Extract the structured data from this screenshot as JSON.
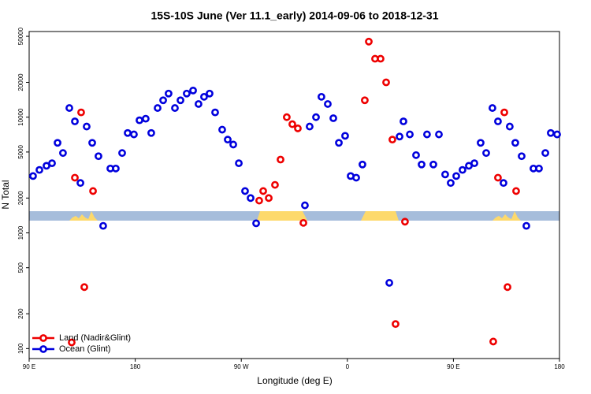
{
  "chart_data": {
    "type": "scatter",
    "title": "15S-10S June (Ver 11.1_early)   2014-09-06 to 2018-12-31",
    "x_label": "Longitude (deg E)",
    "y_label": "N Total",
    "xlim": [
      90,
      540
    ],
    "xticks": [
      {
        "value": 90,
        "label": "90 E"
      },
      180,
      {
        "value": 270,
        "label": "90 W"
      },
      {
        "value": 360,
        "label": "0"
      },
      {
        "value": 450,
        "label": "90 E"
      },
      {
        "value": 540,
        "label": "180"
      }
    ],
    "ylim": [
      82,
      55000
    ],
    "log_y": true,
    "yticks": [
      100,
      200,
      500,
      1000,
      2000,
      5000,
      10000,
      20000,
      50000
    ],
    "legend": "bottom-left",
    "series": [
      {
        "name": "Land (Nadir&Glint)",
        "color": "#ee0000",
        "x": [
          126.1,
          128.8,
          134.1,
          136.8,
          144.2,
          285.2,
          288.6,
          293.3,
          298.6,
          303.3,
          308.6,
          313.3,
          318,
          322.7,
          374.8,
          378.2,
          383.5,
          388.2,
          392.9,
          398.2,
          400.9,
          408.9,
          483.8,
          487.8,
          493.2,
          495.9,
          503.2
        ],
        "values": [
          113,
          3000,
          11000,
          340,
          2300,
          1900,
          2300,
          2000,
          2600,
          4300,
          10000,
          8700,
          8000,
          1220,
          14000,
          45000,
          32000,
          32000,
          20000,
          6400,
          163,
          1250,
          115,
          3000,
          11000,
          340,
          2300
        ]
      },
      {
        "name": "Ocean (Glint)",
        "color": "#0000dd",
        "x": [
          93.3,
          98.7,
          104.7,
          109.4,
          114.1,
          118.7,
          124.1,
          128.8,
          133.5,
          138.8,
          143.5,
          148.8,
          152.8,
          158.9,
          163.5,
          168.9,
          173.6,
          178.9,
          183.6,
          188.9,
          193.6,
          199,
          203.7,
          208.3,
          213.7,
          218.4,
          223.7,
          229.1,
          233.7,
          238.4,
          243.1,
          247.8,
          253.8,
          258.5,
          263.2,
          267.9,
          273.2,
          277.9,
          282.6,
          324,
          328,
          333.4,
          338,
          343.4,
          348.1,
          352.8,
          358.1,
          362.8,
          367.5,
          372.8,
          395.6,
          404.3,
          407.6,
          413,
          418.3,
          423,
          427.6,
          433,
          437.7,
          443,
          447.7,
          452.4,
          457.7,
          463.1,
          467.8,
          473.1,
          477.8,
          483.1,
          487.8,
          492.5,
          497.8,
          502.5,
          507.9,
          511.9,
          517.9,
          522.6,
          528,
          532.6,
          538
        ],
        "values": [
          3100,
          3500,
          3800,
          4000,
          6000,
          4900,
          12000,
          9200,
          2700,
          8300,
          6000,
          4600,
          1150,
          3600,
          3600,
          4900,
          7300,
          7100,
          9400,
          9700,
          7300,
          12000,
          14000,
          16000,
          12000,
          14000,
          16000,
          17000,
          13000,
          15000,
          16000,
          11000,
          7800,
          6400,
          5800,
          4000,
          2300,
          2000,
          1210,
          1730,
          8300,
          10000,
          15000,
          13000,
          9800,
          6000,
          6900,
          3100,
          3000,
          3900,
          370,
          6800,
          9200,
          7100,
          4700,
          3900,
          7100,
          3900,
          7100,
          3200,
          2700,
          3100,
          3500,
          3800,
          4000,
          6000,
          4900,
          12000,
          9200,
          2700,
          8300,
          6000,
          4600,
          1150,
          3600,
          3600,
          4900,
          7300,
          7100
        ]
      }
    ]
  }
}
